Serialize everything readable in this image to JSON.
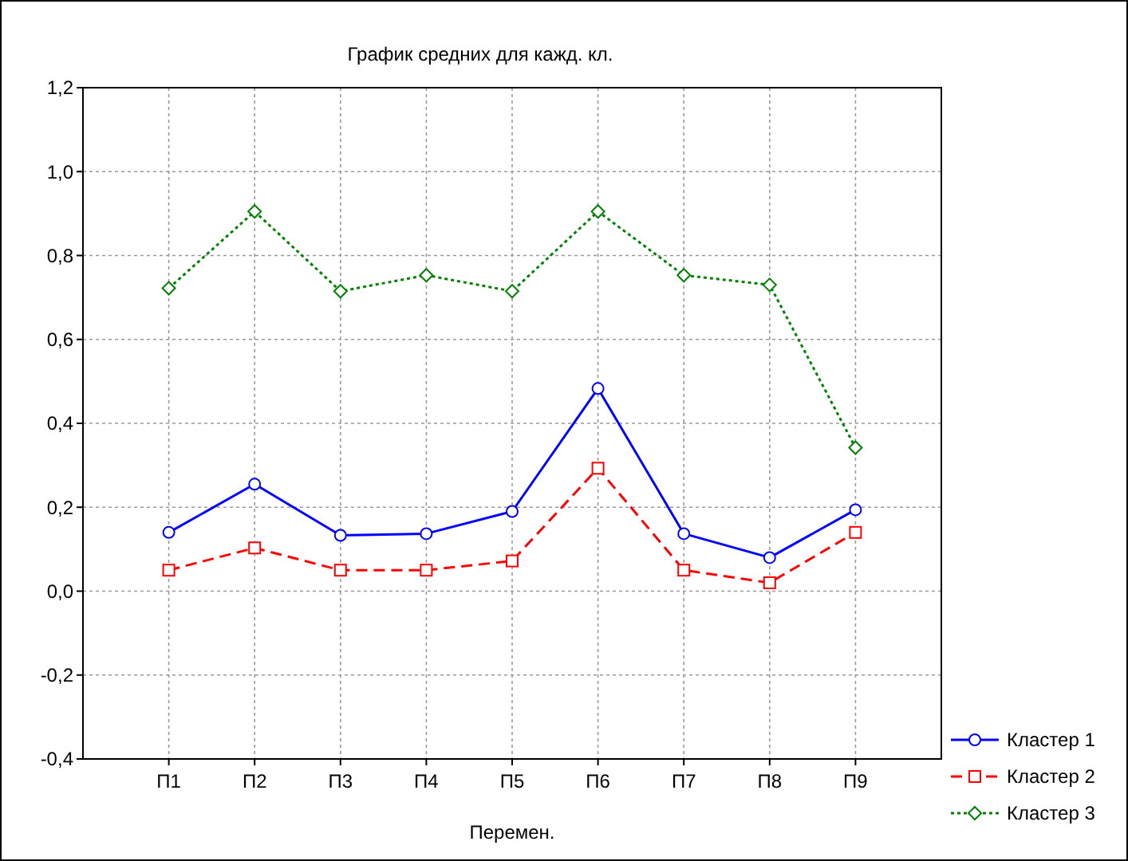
{
  "chart_data": {
    "type": "line",
    "title": "График средних для кажд. кл.",
    "xlabel": "Перемен.",
    "categories": [
      "П1",
      "П2",
      "П3",
      "П4",
      "П5",
      "П6",
      "П7",
      "П8",
      "П9"
    ],
    "ylim": [
      -0.4,
      1.2
    ],
    "yticks": [
      {
        "value": -0.4,
        "label": "-0,4"
      },
      {
        "value": -0.2,
        "label": "-0,2"
      },
      {
        "value": 0,
        "label": "0,0"
      },
      {
        "value": 0.2,
        "label": "0,2"
      },
      {
        "value": 0.4,
        "label": "0,4"
      },
      {
        "value": 0.6,
        "label": "0,6"
      },
      {
        "value": 0.8,
        "label": "0,8"
      },
      {
        "value": 1.0,
        "label": "1,0"
      },
      {
        "value": 1.2,
        "label": "1,2"
      }
    ],
    "grid": true,
    "legend": "bottom right",
    "series": [
      {
        "name": "Кластер 1",
        "color": "#0000ff",
        "marker": "circle",
        "line_style": "solid",
        "values": [
          0.14,
          0.255,
          0.133,
          0.137,
          0.19,
          0.483,
          0.137,
          0.08,
          0.194
        ]
      },
      {
        "name": "Кластер 2",
        "color": "#ff0000",
        "marker": "square",
        "line_style": "dashed",
        "values": [
          0.05,
          0.103,
          0.05,
          0.05,
          0.072,
          0.293,
          0.05,
          0.02,
          0.14
        ]
      },
      {
        "name": "Кластер 3",
        "color": "#008000",
        "marker": "diamond",
        "line_style": "dotted",
        "values": [
          0.722,
          0.905,
          0.715,
          0.753,
          0.715,
          0.905,
          0.753,
          0.73,
          0.342
        ]
      }
    ]
  }
}
